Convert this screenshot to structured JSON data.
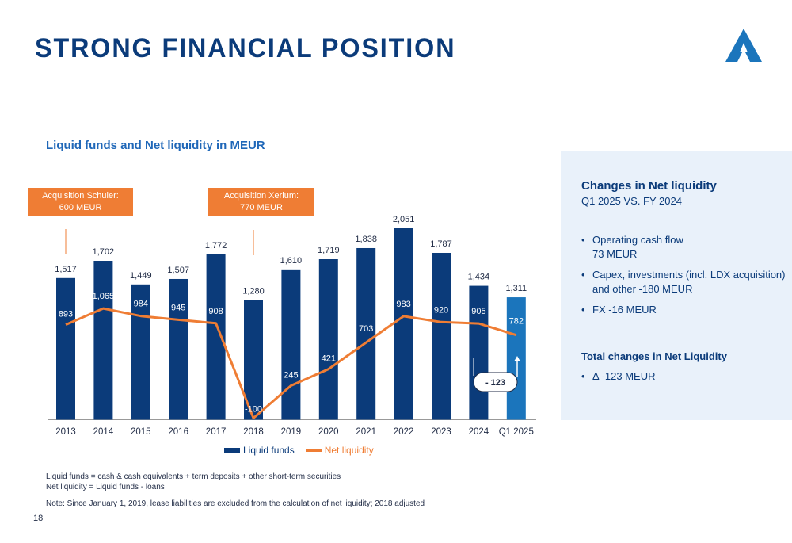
{
  "header": {
    "title": "STRONG FINANCIAL POSITION",
    "page_number": "18"
  },
  "logo": {
    "icon": "company-a-logo-icon",
    "color": "#1b75bc"
  },
  "colors": {
    "bar": "#0b3b7a",
    "bar_highlight": "#1b75bc",
    "line": "#ef7d34",
    "callout_bg": "#ef7d34",
    "panel_bg": "#e9f1fa"
  },
  "chart_data": {
    "type": "bar",
    "title": "Liquid funds and Net liquidity in MEUR",
    "categories": [
      "2013",
      "2014",
      "2015",
      "2016",
      "2017",
      "2018",
      "2019",
      "2020",
      "2021",
      "2022",
      "2023",
      "2024",
      "Q1 2025"
    ],
    "series": [
      {
        "name": "Liquid funds",
        "type": "bar",
        "values": [
          1517,
          1702,
          1449,
          1507,
          1772,
          1280,
          1610,
          1719,
          1838,
          2051,
          1787,
          1434,
          1311
        ],
        "labels": [
          "1,517",
          "1,702",
          "1,449",
          "1,507",
          "1,772",
          "1,280",
          "1,610",
          "1,719",
          "1,838",
          "2,051",
          "1,787",
          "1,434",
          "1,311"
        ]
      },
      {
        "name": "Net liquidity",
        "type": "line",
        "values": [
          893,
          1065,
          984,
          945,
          908,
          -100,
          245,
          421,
          703,
          983,
          920,
          905,
          782
        ],
        "labels": [
          "893",
          "1,065",
          "984",
          "945",
          "908",
          "-100",
          "245",
          "421",
          "703",
          "983",
          "920",
          "905",
          "782"
        ]
      }
    ],
    "highlight_category": "Q1 2025",
    "ylim": [
      -100,
      2100
    ],
    "grid": false,
    "legend_position": "bottom-center",
    "annotations": [
      {
        "category": "2013",
        "lines": [
          "Acquisition Schuler:",
          "600 MEUR"
        ]
      },
      {
        "category": "2018",
        "lines": [
          "Acquisition Xerium:",
          "770 MEUR"
        ]
      }
    ],
    "change_badge": "- 123"
  },
  "footnotes": {
    "definition_1": "Liquid funds = cash & cash equivalents + term deposits + other short-term securities",
    "definition_2": "Net liquidity = Liquid funds - loans",
    "note": "Note: Since January 1, 2019, lease liabilities are excluded from the calculation of net liquidity; 2018 adjusted"
  },
  "side_panel": {
    "heading": "Changes in Net liquidity",
    "subheading": "Q1 2025 VS. FY 2024",
    "items": [
      {
        "line1": "Operating cash flow",
        "line2": "73 MEUR"
      },
      {
        "line1": "Capex, investments (incl. LDX acquisition)",
        "line2": "and other -180 MEUR"
      },
      {
        "line1": "FX -16 MEUR",
        "line2": ""
      }
    ],
    "total_heading": "Total changes in Net Liquidity",
    "total_items": [
      "Δ -123 MEUR"
    ]
  }
}
